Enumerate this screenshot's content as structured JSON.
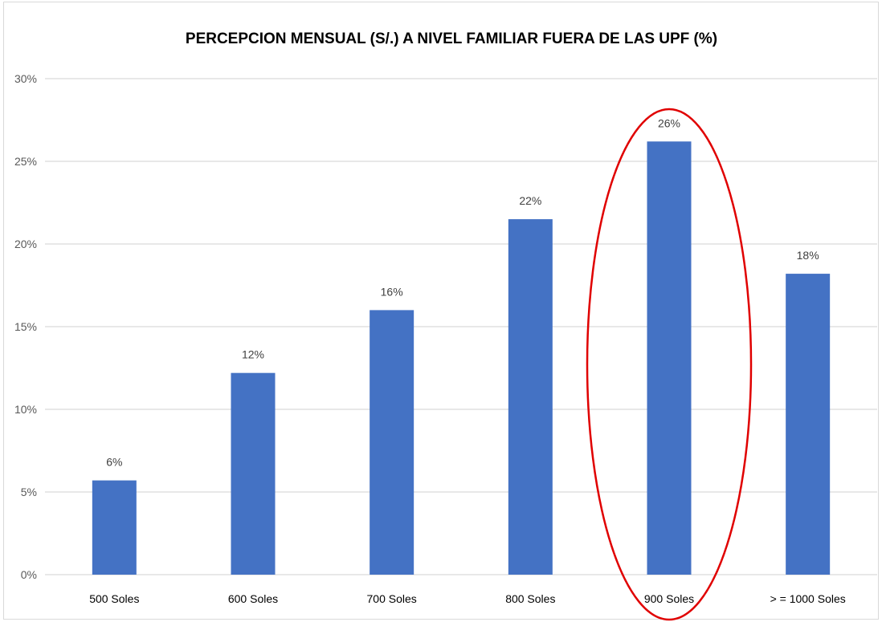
{
  "chart_data": {
    "type": "bar",
    "title": "PERCEPCION MENSUAL (S/.) A NIVEL FAMILIAR FUERA DE LAS UPF (%)",
    "xlabel": "",
    "ylabel": "",
    "categories": [
      "500 Soles",
      "600 Soles",
      "700 Soles",
      "800 Soles",
      "900 Soles",
      "> = 1000 Soles"
    ],
    "values": [
      5.7,
      12.2,
      16.0,
      21.5,
      26.2,
      18.2
    ],
    "data_labels": [
      "6%",
      "12%",
      "16%",
      "22%",
      "26%",
      "18%"
    ],
    "ylim": [
      0,
      30
    ],
    "yticks": [
      0,
      5,
      10,
      15,
      20,
      25,
      30
    ],
    "ytick_labels": [
      "0%",
      "5%",
      "10%",
      "15%",
      "20%",
      "25%",
      "30%"
    ],
    "grid": true,
    "bar_color": "#4472c4",
    "gridline_color": "#d9d9d9",
    "highlight": {
      "shape": "ellipse",
      "category": "900 Soles",
      "color": "#e00000"
    }
  }
}
